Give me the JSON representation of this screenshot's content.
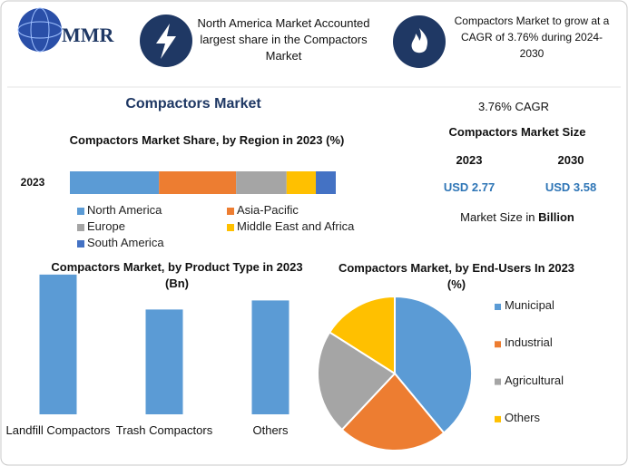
{
  "header": {
    "logo": "MMR",
    "info_1": "North America Market Accounted largest share in the Compactors Market",
    "info_2": "Compactors Market to grow at a CAGR of 3.76% during 2024-2030"
  },
  "title": "Compactors Market",
  "stats": {
    "cagr": "3.76% CAGR",
    "title": "Compactors Market Size",
    "years": [
      "2023",
      "2030"
    ],
    "values": [
      "USD 2.77",
      "USD 3.58"
    ],
    "note": [
      "Market Size in",
      "Billion"
    ]
  },
  "chart_data": [
    {
      "type": "bar",
      "orientation": "horizontal",
      "stacked": true,
      "title": "Compactors Market Share, by Region in 2023 (%)",
      "categories": [
        "2023"
      ],
      "xlim": [
        0,
        100
      ],
      "series": [
        {
          "name": "North America",
          "color": "#5b9bd5",
          "values": [
            33.5
          ]
        },
        {
          "name": "Asia-Pacific",
          "color": "#ed7d31",
          "values": [
            29
          ]
        },
        {
          "name": "Europe",
          "color": "#a5a5a5",
          "values": [
            19
          ]
        },
        {
          "name": "Middle East and Africa",
          "color": "#ffc000",
          "values": [
            11
          ]
        },
        {
          "name": "South America",
          "color": "#4472c4",
          "values": [
            7.5
          ]
        }
      ]
    },
    {
      "type": "bar",
      "title": "Compactors Market, by Product Type in 2023 (Bn)",
      "categories": [
        "Landfill Compactors",
        "Trash Compactors",
        "Others"
      ],
      "values": [
        1.08,
        0.81,
        0.88
      ],
      "color": "#5b9bd5",
      "ylim": [
        0,
        1.1
      ]
    },
    {
      "type": "pie",
      "title": "Compactors Market, by End-Users In 2023 (%)",
      "categories": [
        "Municipal",
        "Industrial",
        "Agricultural",
        "Others"
      ],
      "values": [
        39,
        23,
        22,
        16
      ],
      "colors": [
        "#5b9bd5",
        "#ed7d31",
        "#a5a5a5",
        "#ffc000"
      ]
    }
  ]
}
